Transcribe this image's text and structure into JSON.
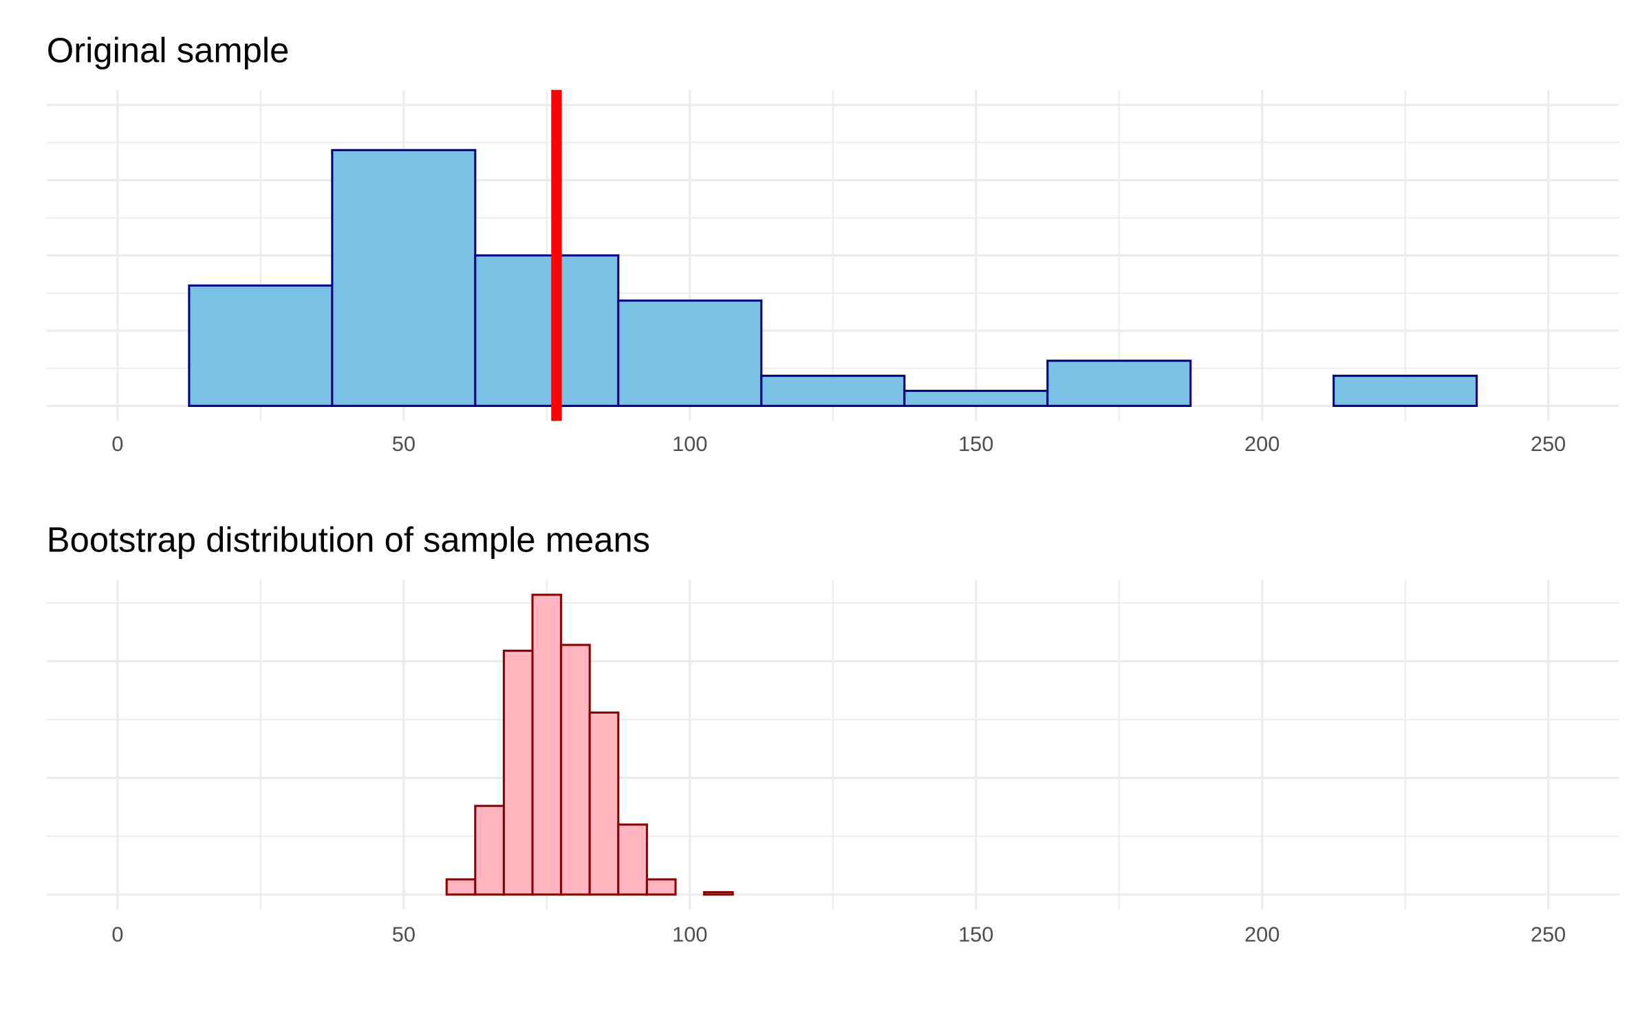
{
  "chart_data": [
    {
      "type": "histogram",
      "title": "Original sample",
      "bins": [
        12.5,
        37.5,
        62.5,
        87.5,
        112.5,
        137.5,
        162.5,
        187.5,
        212.5,
        237.5
      ],
      "values": [
        8,
        17,
        10,
        7,
        2,
        1,
        3,
        0,
        2
      ],
      "color": "#7ac2e5",
      "edgecolor": "#000080",
      "vline": 76.7,
      "vline_color": "#ff0000",
      "xlim": [
        -12.4,
        262.4
      ],
      "xticks": [
        0,
        50,
        100,
        150,
        200,
        250
      ],
      "ylim": [
        -1,
        21
      ],
      "yticks": [
        0,
        2.5,
        5,
        7.5,
        10,
        12.5,
        15,
        17.5,
        20
      ],
      "grid": true
    },
    {
      "type": "histogram",
      "title": "Bootstrap distribution of sample means",
      "bins": [
        2.5,
        7.5,
        12.5,
        17.5,
        22.5,
        27.5,
        32.5,
        37.5,
        42.5,
        47.5,
        52.5,
        57.5,
        62.5,
        67.5,
        72.5,
        77.5,
        82.5,
        87.5,
        92.5,
        97.5,
        102.5,
        107.5,
        112.5,
        117.5,
        122.5,
        127.5,
        132.5,
        137.5,
        142.5,
        147.5,
        152.5,
        157.5,
        162.5,
        167.5,
        172.5,
        177.5,
        182.5,
        187.5,
        192.5,
        197.5,
        202.5,
        207.5,
        212.5,
        217.5,
        222.5,
        227.5,
        232.5,
        237.5,
        242.5,
        247.5
      ],
      "values": [
        0,
        0,
        0,
        0,
        0,
        0,
        0,
        0,
        0,
        0,
        0,
        13,
        76,
        209,
        257,
        214,
        156,
        60,
        13,
        0,
        2,
        0,
        0,
        0,
        0,
        0,
        0,
        0,
        0,
        0,
        0,
        0,
        0,
        0,
        0,
        0,
        0,
        0,
        0,
        0,
        0,
        0,
        0,
        0,
        0,
        0,
        0,
        0,
        0
      ],
      "color": "#ffb6c1",
      "edgecolor": "#8b0000",
      "xlim": [
        -12.4,
        262.4
      ],
      "xticks": [
        0,
        50,
        100,
        150,
        200,
        250
      ],
      "ylim": [
        -12.9,
        270
      ],
      "yticks": [
        0,
        50,
        100,
        150,
        200,
        250
      ],
      "grid": true
    }
  ]
}
